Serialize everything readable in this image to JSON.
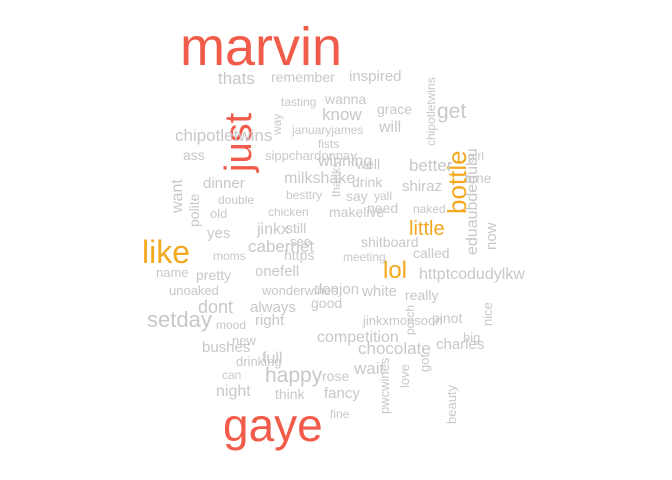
{
  "colors": {
    "high": "#f15b4a",
    "medium": "#f4a81e",
    "low": "#c8c8c8",
    "background": "#ffffff"
  },
  "words": [
    "marvin",
    "gaye",
    "just",
    "like",
    "bottle",
    "lol",
    "little",
    "thats",
    "remember",
    "inspired",
    "wanna",
    "tasting",
    "grace",
    "know",
    "will",
    "get",
    "januaryjames",
    "way",
    "chipotletwins",
    "ass",
    "fists",
    "sippchardonnay",
    "winning",
    "well",
    "better",
    "girl",
    "want",
    "dinner",
    "milkshake",
    "drink",
    "shiraz",
    "time",
    "polite",
    "double",
    "besttry",
    "thanks",
    "say",
    "yall",
    "old",
    "chicken",
    "makelive",
    "need",
    "naked",
    "yes",
    "jinkx",
    "still",
    "eduaubdedubu",
    "now",
    "cabernet",
    "see",
    "shitboard",
    "moms",
    "https",
    "meeting",
    "called",
    "name",
    "pretty",
    "onefell",
    "httptcodudylkw",
    "unoaked",
    "wonderwines",
    "donjon",
    "white",
    "really",
    "setday",
    "dont",
    "good",
    "always",
    "nice",
    "mood",
    "right",
    "jinkxmonsoon",
    "pinot",
    "porch",
    "new",
    "competition",
    "love",
    "charles",
    "big",
    "bushes",
    "got",
    "drinking",
    "full",
    "chocolate",
    "can",
    "happy",
    "rose",
    "wait",
    "night",
    "think",
    "fancy",
    "beauty",
    "pwcwines",
    "fine",
    "oaked"
  ]
}
